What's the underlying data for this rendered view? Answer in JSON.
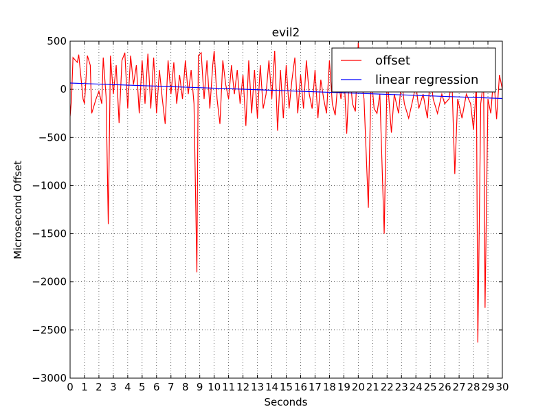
{
  "chart_data": {
    "type": "line",
    "title": "evil2",
    "xlabel": "Seconds",
    "ylabel": "Microsecond Offset",
    "xlim": [
      0,
      30
    ],
    "ylim": [
      -3000,
      500
    ],
    "xticks": [
      0,
      1,
      2,
      3,
      4,
      5,
      6,
      7,
      8,
      9,
      10,
      11,
      12,
      13,
      14,
      15,
      16,
      17,
      18,
      19,
      20,
      21,
      22,
      23,
      24,
      25,
      26,
      27,
      28,
      29,
      30
    ],
    "yticks": [
      {
        "value": -3000,
        "label": "−3000"
      },
      {
        "value": -2500,
        "label": "−2500"
      },
      {
        "value": -2000,
        "label": "−2000"
      },
      {
        "value": -1500,
        "label": "−1500"
      },
      {
        "value": -1000,
        "label": "−1000"
      },
      {
        "value": -500,
        "label": "−500"
      },
      0,
      500
    ],
    "grid": true,
    "legend": "upper right",
    "series": [
      {
        "name": "offset",
        "color": "#ff0000",
        "x": [
          0,
          0.1,
          0.2,
          0.5,
          0.6,
          0.9,
          1.0,
          1.2,
          1.4,
          1.5,
          1.8,
          2.0,
          2.2,
          2.3,
          2.5,
          2.65,
          2.8,
          3.0,
          3.2,
          3.4,
          3.6,
          3.8,
          4.0,
          4.2,
          4.4,
          4.6,
          4.8,
          5.0,
          5.2,
          5.4,
          5.6,
          5.8,
          6.0,
          6.2,
          6.4,
          6.6,
          6.8,
          7.0,
          7.2,
          7.4,
          7.6,
          7.8,
          8.0,
          8.2,
          8.4,
          8.6,
          8.8,
          8.9,
          9.1,
          9.3,
          9.5,
          9.7,
          9.9,
          10.0,
          10.2,
          10.4,
          10.6,
          10.8,
          11.0,
          11.2,
          11.4,
          11.6,
          11.8,
          12.0,
          12.2,
          12.4,
          12.6,
          12.8,
          13.0,
          13.2,
          13.4,
          13.6,
          13.8,
          14.0,
          14.2,
          14.4,
          14.6,
          14.8,
          15.0,
          15.2,
          15.4,
          15.6,
          15.8,
          16.0,
          16.2,
          16.4,
          16.6,
          16.8,
          17.0,
          17.2,
          17.4,
          17.6,
          17.8,
          18.0,
          18.2,
          18.4,
          18.6,
          18.8,
          19.0,
          19.2,
          19.4,
          19.6,
          19.8,
          20.0,
          20.2,
          20.4,
          20.7,
          20.9,
          21.1,
          21.3,
          21.5,
          21.8,
          22.0,
          22.3,
          22.5,
          22.8,
          23.0,
          23.2,
          23.5,
          23.8,
          24.0,
          24.2,
          24.5,
          24.8,
          25.0,
          25.2,
          25.5,
          25.8,
          26.0,
          26.3,
          26.5,
          26.7,
          26.9,
          27.2,
          27.5,
          27.8,
          28.0,
          28.2,
          28.3,
          28.5,
          28.7,
          28.8,
          29.0,
          29.2,
          29.4,
          29.6,
          29.8,
          30.0
        ],
        "values": [
          -280,
          -100,
          330,
          280,
          360,
          -100,
          -150,
          350,
          250,
          -250,
          -100,
          -20,
          -150,
          330,
          -80,
          -1400,
          350,
          -50,
          250,
          -350,
          300,
          380,
          -200,
          350,
          50,
          250,
          -250,
          300,
          -150,
          370,
          -200,
          330,
          -250,
          200,
          -100,
          -360,
          300,
          -50,
          280,
          -150,
          150,
          -100,
          300,
          -50,
          200,
          -150,
          -1900,
          350,
          380,
          -100,
          300,
          -200,
          250,
          400,
          -100,
          -360,
          300,
          50,
          -100,
          250,
          -50,
          200,
          -150,
          150,
          -380,
          300,
          -250,
          200,
          -300,
          250,
          -200,
          -50,
          300,
          -100,
          400,
          -430,
          200,
          -300,
          250,
          -200,
          100,
          330,
          -250,
          150,
          -200,
          300,
          -50,
          -200,
          200,
          -300,
          100,
          -100,
          -250,
          300,
          -150,
          -270,
          100,
          -100,
          200,
          -460,
          200,
          -150,
          -230,
          480,
          100,
          -100,
          -1230,
          150,
          -200,
          -250,
          -50,
          -1500,
          150,
          -450,
          -50,
          -250,
          100,
          -150,
          -300,
          -100,
          50,
          -200,
          -50,
          -300,
          150,
          -100,
          -250,
          -50,
          -150,
          -100,
          100,
          -880,
          -100,
          -300,
          -50,
          -150,
          -420,
          50,
          -2630,
          -150,
          100,
          -2270,
          -100,
          -250,
          150,
          -310,
          150,
          0
        ]
      },
      {
        "name": "linear regression",
        "color": "#0000ff",
        "x": [
          0,
          30
        ],
        "values": [
          65,
          -95
        ]
      }
    ]
  }
}
